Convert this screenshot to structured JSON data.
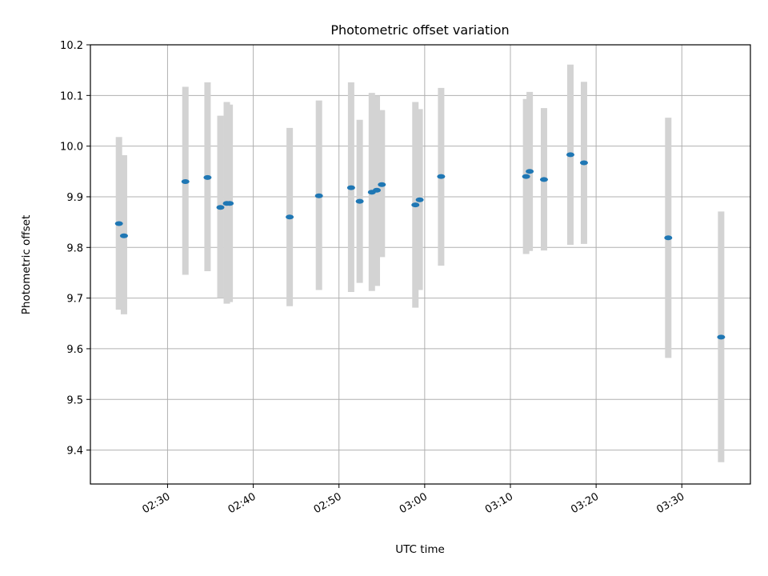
{
  "chart_data": {
    "type": "scatter",
    "title": "Photometric offset variation",
    "xlabel": "UTC time",
    "ylabel": "Photometric offset",
    "xlim": [
      "02:21:00",
      "03:38:00"
    ],
    "ylim": [
      9.333,
      10.2
    ],
    "x_ticks": [
      "02:30",
      "02:40",
      "02:50",
      "03:00",
      "03:10",
      "03:20",
      "03:30"
    ],
    "y_ticks": [
      "9.4",
      "9.5",
      "9.6",
      "9.7",
      "9.8",
      "9.9",
      "10.0",
      "10.1",
      "10.2"
    ],
    "grid": true,
    "colors": {
      "point": "#1f77b4",
      "errorbar": "#d3d3d3",
      "grid": "#b0b0b0"
    },
    "points": [
      {
        "x": "02:24:20",
        "y": 9.847,
        "yerr_low": 9.677,
        "yerr_high": 10.018
      },
      {
        "x": "02:24:55",
        "y": 9.823,
        "yerr_low": 9.668,
        "yerr_high": 9.982
      },
      {
        "x": "02:32:05",
        "y": 9.93,
        "yerr_low": 9.746,
        "yerr_high": 10.117
      },
      {
        "x": "02:34:40",
        "y": 9.938,
        "yerr_low": 9.753,
        "yerr_high": 10.126
      },
      {
        "x": "02:36:10",
        "y": 9.879,
        "yerr_low": 9.7,
        "yerr_high": 10.06
      },
      {
        "x": "02:36:55",
        "y": 9.887,
        "yerr_low": 9.689,
        "yerr_high": 10.087
      },
      {
        "x": "02:37:15",
        "y": 9.887,
        "yerr_low": 9.692,
        "yerr_high": 10.082
      },
      {
        "x": "02:44:15",
        "y": 9.86,
        "yerr_low": 9.684,
        "yerr_high": 10.036
      },
      {
        "x": "02:47:40",
        "y": 9.902,
        "yerr_low": 9.716,
        "yerr_high": 10.09
      },
      {
        "x": "02:51:25",
        "y": 9.918,
        "yerr_low": 9.712,
        "yerr_high": 10.126
      },
      {
        "x": "02:52:25",
        "y": 9.891,
        "yerr_low": 9.73,
        "yerr_high": 10.052
      },
      {
        "x": "02:53:50",
        "y": 9.909,
        "yerr_low": 9.714,
        "yerr_high": 10.105
      },
      {
        "x": "02:54:25",
        "y": 9.913,
        "yerr_low": 9.724,
        "yerr_high": 10.1
      },
      {
        "x": "02:55:00",
        "y": 9.924,
        "yerr_low": 9.781,
        "yerr_high": 10.071
      },
      {
        "x": "02:58:55",
        "y": 9.884,
        "yerr_low": 9.681,
        "yerr_high": 10.087
      },
      {
        "x": "02:59:25",
        "y": 9.894,
        "yerr_low": 9.716,
        "yerr_high": 10.073
      },
      {
        "x": "03:01:55",
        "y": 9.94,
        "yerr_low": 9.764,
        "yerr_high": 10.115
      },
      {
        "x": "03:11:50",
        "y": 9.94,
        "yerr_low": 9.787,
        "yerr_high": 10.093
      },
      {
        "x": "03:12:15",
        "y": 9.95,
        "yerr_low": 9.793,
        "yerr_high": 10.107
      },
      {
        "x": "03:13:55",
        "y": 9.934,
        "yerr_low": 9.794,
        "yerr_high": 10.075
      },
      {
        "x": "03:17:00",
        "y": 9.983,
        "yerr_low": 9.805,
        "yerr_high": 10.161
      },
      {
        "x": "03:18:35",
        "y": 9.967,
        "yerr_low": 9.807,
        "yerr_high": 10.127
      },
      {
        "x": "03:28:25",
        "y": 9.819,
        "yerr_low": 9.582,
        "yerr_high": 10.056
      },
      {
        "x": "03:34:35",
        "y": 9.623,
        "yerr_low": 9.376,
        "yerr_high": 9.871
      }
    ]
  }
}
